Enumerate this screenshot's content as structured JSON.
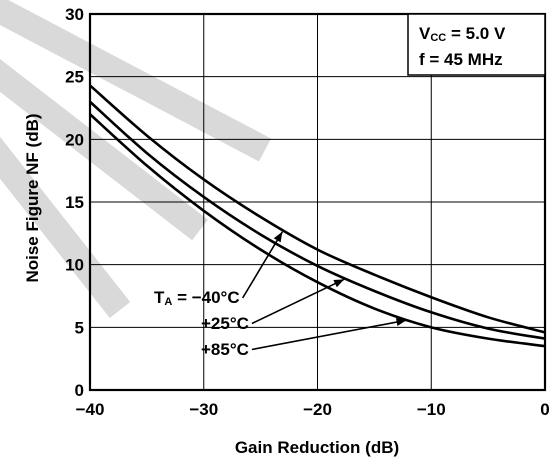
{
  "chart_data": {
    "type": "line",
    "title": "",
    "xlabel": "Gain Reduction (dB)",
    "ylabel": "Noise Figure  NF (dB)",
    "xlim": [
      -40,
      0
    ],
    "ylim": [
      0,
      30
    ],
    "x_ticks": [
      "−40",
      "−30",
      "−20",
      "−10",
      "0"
    ],
    "y_ticks": [
      "0",
      "5",
      "10",
      "15",
      "20",
      "25",
      "30"
    ],
    "grid": true,
    "conditions": {
      "vcc_prefix": "V",
      "vcc_sub": "CC",
      "vcc_value": " = 5.0 V",
      "freq": "f = 45 MHz"
    },
    "series": [
      {
        "name": "Tₐ = −40°C",
        "label_prefix": "T",
        "label_sub": "A",
        "label_rest": " = −40°C",
        "x": [
          -40,
          -35,
          -30,
          -25,
          -20,
          -15,
          -10,
          -5,
          0
        ],
        "y": [
          24.3,
          20.3,
          16.8,
          13.8,
          11.2,
          9.2,
          7.4,
          5.8,
          4.6
        ]
      },
      {
        "name": "+25°C",
        "label_prefix": "",
        "label_sub": "",
        "label_rest": "+25°C",
        "x": [
          -40,
          -35,
          -30,
          -25,
          -20,
          -15,
          -10,
          -5,
          0
        ],
        "y": [
          23.0,
          18.9,
          15.4,
          12.4,
          9.9,
          7.9,
          6.2,
          4.9,
          4.1
        ]
      },
      {
        "name": "+85°C",
        "label_prefix": "",
        "label_sub": "",
        "label_rest": "+85°C",
        "x": [
          -40,
          -35,
          -30,
          -25,
          -20,
          -15,
          -10,
          -5,
          0
        ],
        "y": [
          22.0,
          17.9,
          14.3,
          11.2,
          8.6,
          6.5,
          5.0,
          4.1,
          3.5
        ]
      }
    ]
  }
}
